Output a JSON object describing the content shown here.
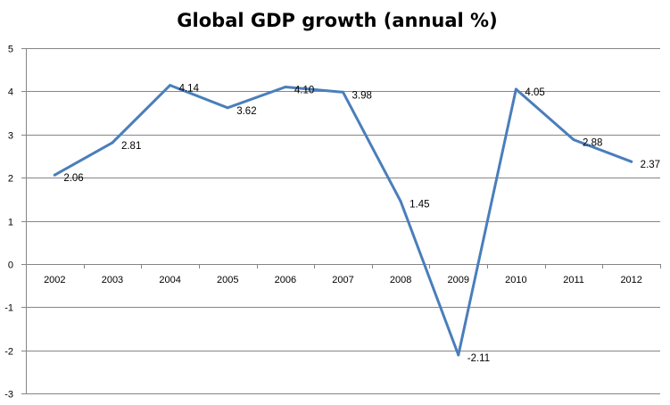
{
  "chart_data": {
    "type": "line",
    "title": "Global GDP growth (annual %)",
    "xlabel": "",
    "ylabel": "",
    "categories": [
      "2002",
      "2003",
      "2004",
      "2005",
      "2006",
      "2007",
      "2008",
      "2009",
      "2010",
      "2011",
      "2012"
    ],
    "series": [
      {
        "name": "Global GDP growth (annual %)",
        "values": [
          2.06,
          2.81,
          4.14,
          3.62,
          4.1,
          3.98,
          1.45,
          -2.11,
          4.05,
          2.88,
          2.37
        ],
        "labels": [
          "2.06",
          "2.81",
          "4.14",
          "3.62",
          "4.10",
          "3.98",
          "1.45",
          "-2.11",
          "4.05",
          "2.88",
          "2.37"
        ],
        "color": "#4a7ebb"
      }
    ],
    "ylim": [
      -3,
      5
    ],
    "yticks": [
      "5",
      "4",
      "3",
      "2",
      "1",
      "0",
      "-1",
      "-2",
      "-3"
    ],
    "ytick_values": [
      5,
      4,
      3,
      2,
      1,
      0,
      -1,
      -2,
      -3
    ],
    "grid": true,
    "legend": "none",
    "colors": {
      "line": "#4a7ebb",
      "grid": "#868686",
      "axis": "#868686"
    }
  }
}
